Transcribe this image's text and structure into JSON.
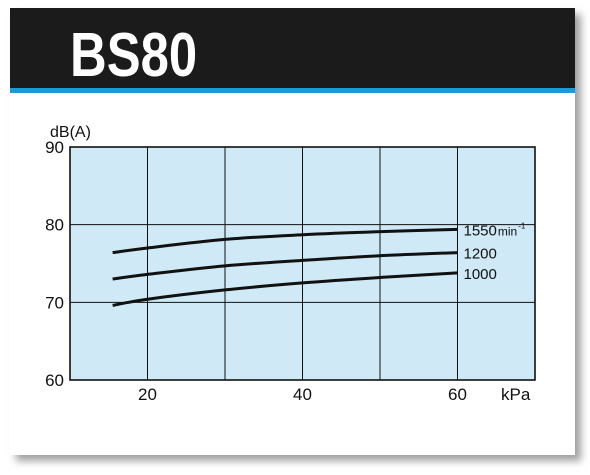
{
  "chart_data": {
    "type": "line",
    "title": "BS80",
    "x": [
      15.5,
      20,
      30,
      40,
      50,
      60
    ],
    "series": [
      {
        "name": "1550",
        "color": "#111111",
        "values": [
          76.4,
          77.0,
          78.1,
          78.7,
          79.1,
          79.4
        ]
      },
      {
        "name": "1200",
        "color": "#111111",
        "values": [
          73.0,
          73.6,
          74.7,
          75.4,
          76.0,
          76.4
        ]
      },
      {
        "name": "1000",
        "color": "#111111",
        "values": [
          69.6,
          70.4,
          71.6,
          72.5,
          73.2,
          73.8
        ]
      }
    ],
    "series_unit": {
      "text": "min",
      "superscript": "-1"
    },
    "xlabel": "kPa",
    "ylabel": "dB(A)",
    "xlim": [
      10,
      70
    ],
    "xticks": [
      20,
      40,
      60
    ],
    "xgrid": [
      20,
      30,
      40,
      50,
      60
    ],
    "ylim": [
      60,
      90
    ],
    "yticks": [
      60,
      70,
      80,
      90
    ],
    "grid": true,
    "plot_background": "#cfe9f6"
  }
}
